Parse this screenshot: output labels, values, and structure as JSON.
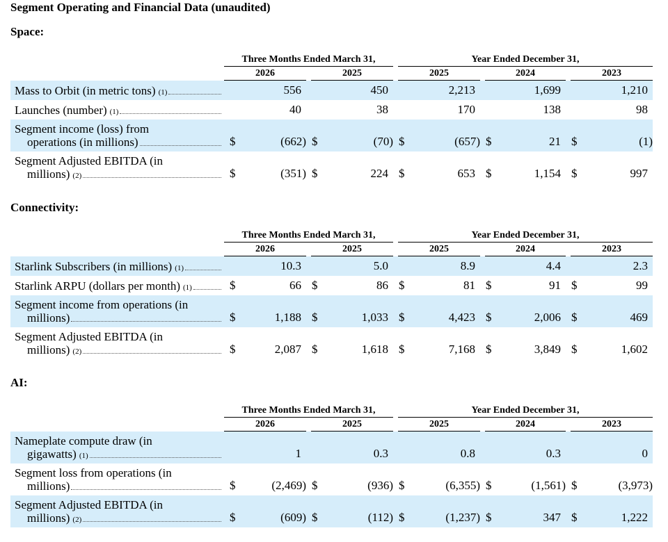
{
  "title": "Segment Operating and Financial Data (unaudited)",
  "sections": [
    {
      "heading": "Space:",
      "period_headers": [
        "Three Months Ended March 31,",
        "Year Ended December 31,"
      ],
      "columns": [
        "2026",
        "2025",
        "2025",
        "2024",
        "2023"
      ],
      "rows": [
        {
          "label": [
            "Mass to Orbit (in metric tons)"
          ],
          "footnote": "(1)",
          "values": [
            "556",
            "450",
            "2,213",
            "1,699",
            "1,210"
          ]
        },
        {
          "label": [
            "Launches (number)"
          ],
          "footnote": "(1)",
          "values": [
            "40",
            "38",
            "170",
            "138",
            "98"
          ]
        },
        {
          "label": [
            "Segment income (loss) from",
            "operations (in millions)"
          ],
          "currency": "$",
          "values": [
            "(662)",
            "(70)",
            "(657)",
            "21",
            "(1)"
          ]
        },
        {
          "label": [
            "Segment Adjusted EBITDA (in",
            "millions)"
          ],
          "footnote": "(2)",
          "currency": "$",
          "values": [
            "(351)",
            "224",
            "653",
            "1,154",
            "997"
          ]
        }
      ]
    },
    {
      "heading": "Connectivity:",
      "period_headers": [
        "Three Months Ended March 31,",
        "Year Ended December 31,"
      ],
      "columns": [
        "2026",
        "2025",
        "2025",
        "2024",
        "2023"
      ],
      "rows": [
        {
          "label": [
            "Starlink Subscribers (in millions)"
          ],
          "footnote": "(1)",
          "values": [
            "10.3",
            "5.0",
            "8.9",
            "4.4",
            "2.3"
          ]
        },
        {
          "label": [
            "Starlink ARPU (dollars per month)"
          ],
          "footnote": "(1)",
          "currency": "$",
          "values": [
            "66",
            "86",
            "81",
            "91",
            "99"
          ]
        },
        {
          "label": [
            "Segment income from operations (in",
            "millions)"
          ],
          "currency": "$",
          "values": [
            "1,188",
            "1,033",
            "4,423",
            "2,006",
            "469"
          ]
        },
        {
          "label": [
            "Segment Adjusted EBITDA (in",
            "millions)"
          ],
          "footnote": "(2)",
          "currency": "$",
          "values": [
            "2,087",
            "1,618",
            "7,168",
            "3,849",
            "1,602"
          ]
        }
      ]
    },
    {
      "heading": "AI:",
      "period_headers": [
        "Three Months Ended March 31,",
        "Year Ended December 31,"
      ],
      "columns": [
        "2026",
        "2025",
        "2025",
        "2024",
        "2023"
      ],
      "rows": [
        {
          "label": [
            "Nameplate compute draw (in",
            "gigawatts)"
          ],
          "footnote": "(1)",
          "values": [
            "1",
            "0.3",
            "0.8",
            "0.3",
            "0"
          ]
        },
        {
          "label": [
            "Segment loss from operations (in",
            "millions)"
          ],
          "currency": "$",
          "values": [
            "(2,469)",
            "(936)",
            "(6,355)",
            "(1,561)",
            "(3,973)"
          ]
        },
        {
          "label": [
            "Segment Adjusted EBITDA (in",
            "millions)"
          ],
          "footnote": "(2)",
          "currency": "$",
          "values": [
            "(609)",
            "(112)",
            "(1,237)",
            "347",
            "1,222"
          ]
        }
      ]
    }
  ]
}
